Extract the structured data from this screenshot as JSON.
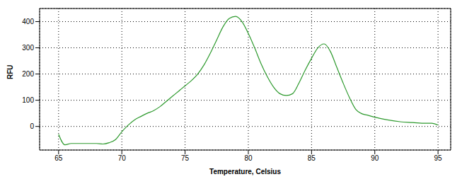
{
  "chart_data": {
    "type": "line",
    "x_label": "Temperature, Celsius",
    "y_label": "RFU",
    "x": [
      65,
      65.5,
      66,
      67,
      68,
      68.5,
      69,
      69.5,
      70,
      70.5,
      71,
      71.5,
      72,
      72.5,
      73,
      73.5,
      74,
      74.5,
      75,
      75.5,
      76,
      76.5,
      77,
      77.5,
      78,
      78.5,
      79,
      79.5,
      80,
      80.5,
      81,
      81.5,
      82,
      82.5,
      83,
      83.5,
      84,
      84.5,
      85,
      85.5,
      86,
      86.5,
      87,
      87.5,
      88,
      88.5,
      89,
      89.5,
      90,
      91,
      92,
      93,
      94,
      94.5,
      95
    ],
    "values": [
      -30,
      -70,
      -65,
      -65,
      -65,
      -67,
      -62,
      -50,
      -20,
      5,
      25,
      38,
      50,
      60,
      75,
      95,
      115,
      135,
      155,
      175,
      200,
      235,
      280,
      330,
      380,
      412,
      420,
      400,
      355,
      300,
      240,
      190,
      150,
      125,
      118,
      125,
      165,
      215,
      260,
      300,
      315,
      285,
      225,
      165,
      110,
      65,
      48,
      42,
      35,
      25,
      18,
      15,
      12,
      12,
      5
    ],
    "color": "#2e9a2e",
    "xlim": [
      63.5,
      96
    ],
    "ylim": [
      -90,
      450
    ],
    "xticks": [
      65,
      70,
      75,
      80,
      85,
      90,
      95
    ],
    "yticks": [
      0,
      100,
      200,
      300,
      400
    ],
    "grid": true
  }
}
